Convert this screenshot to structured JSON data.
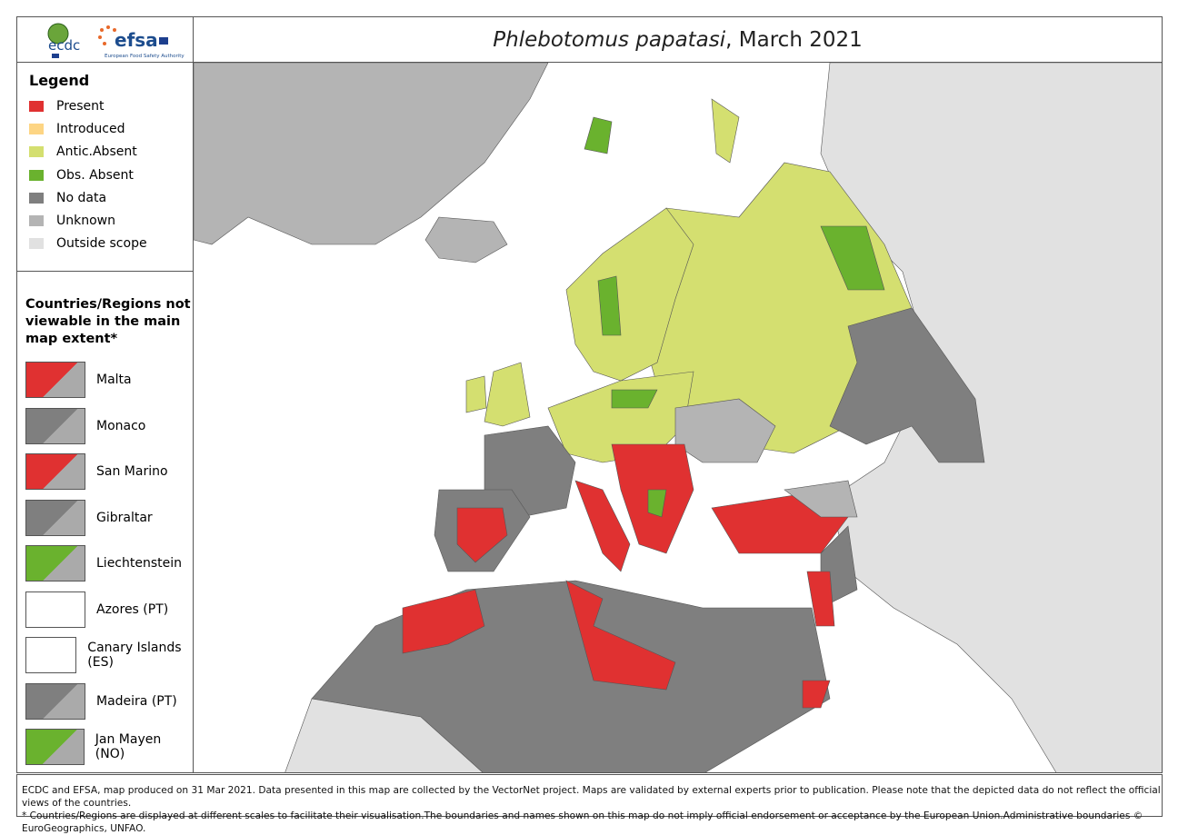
{
  "header": {
    "title_species": "Phlebotomus papatasi",
    "title_date": ", March 2021",
    "logos": [
      "ecdc",
      "efsa European Food Safety Authority"
    ]
  },
  "legend": {
    "title": "Legend",
    "items": [
      {
        "label": "Present",
        "color": "#e03131"
      },
      {
        "label": "Introduced",
        "color": "#fdd584"
      },
      {
        "label": "Antic.Absent",
        "color": "#d4df70"
      },
      {
        "label": "Obs. Absent",
        "color": "#6ab22e"
      },
      {
        "label": "No data",
        "color": "#7f7f7f"
      },
      {
        "label": "Unknown",
        "color": "#b4b4b4"
      },
      {
        "label": "Outside scope",
        "color": "#e1e1e1"
      }
    ]
  },
  "regions": {
    "title": "Countries/Regions not viewable in the main map extent*",
    "items": [
      {
        "label": "Malta",
        "status": "Present"
      },
      {
        "label": "Monaco",
        "status": "No data"
      },
      {
        "label": "San Marino",
        "status": "Present"
      },
      {
        "label": "Gibraltar",
        "status": "No data"
      },
      {
        "label": "Liechtenstein",
        "status": "Obs. Absent"
      },
      {
        "label": "Azores (PT)",
        "status": "Outside scope"
      },
      {
        "label": "Canary Islands (ES)",
        "status": "Outside scope"
      },
      {
        "label": "Madeira (PT)",
        "status": "No data"
      },
      {
        "label": "Jan Mayen (NO)",
        "status": "Obs. Absent"
      }
    ]
  },
  "footer": {
    "line1": "ECDC and EFSA, map produced on 31 Mar 2021. Data presented in this map are collected by the VectorNet project. Maps are validated by external experts prior to publication. Please note that the depicted data do not reflect the official views of the countries.",
    "line2": "* Countries/Regions are displayed at different scales to facilitate their visualisation.The boundaries and names shown on this map do not imply official endorsement or acceptance by the European Union.Administrative boundaries © EuroGeographics, UNFAO."
  }
}
